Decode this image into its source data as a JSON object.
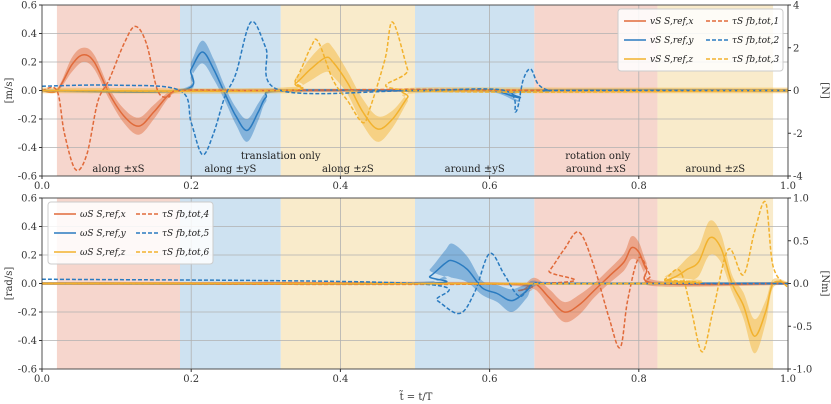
{
  "chart_data": [
    {
      "type": "line",
      "panel": "top",
      "title": "",
      "xlabel": "",
      "ylabel_left": "[m/s]",
      "ylabel_right": "[N]",
      "xlim": [
        0.0,
        1.0
      ],
      "ylim_left": [
        -0.6,
        0.6
      ],
      "ylim_right": [
        -4,
        4
      ],
      "yticks_left": [
        "-0.6",
        "-0.4",
        "-0.2",
        "0.0",
        "0.2",
        "0.4",
        "0.6"
      ],
      "yticks_right": [
        "-4",
        "-2",
        "0",
        "2",
        "4"
      ],
      "xticks": [
        "0.0",
        "0.2",
        "0.4",
        "0.6",
        "0.8",
        "1.0"
      ],
      "grid": true,
      "regions": [
        {
          "x0": 0.02,
          "x1": 0.185,
          "color": "#F4CFC4",
          "label": "along ±xS"
        },
        {
          "x0": 0.185,
          "x1": 0.32,
          "color": "#C5DDEE",
          "label": "along ±yS"
        },
        {
          "x0": 0.32,
          "x1": 0.5,
          "color": "#F8E8C2",
          "label": "along ±zS"
        },
        {
          "x0": 0.5,
          "x1": 0.66,
          "color": "#C5DDEE",
          "label": "around ±yS"
        },
        {
          "x0": 0.66,
          "x1": 0.825,
          "color": "#F4CFC4",
          "label": "around ±xS"
        },
        {
          "x0": 0.825,
          "x1": 0.98,
          "color": "#F8E8C2",
          "label": "around ±zS"
        }
      ],
      "group_labels": [
        {
          "text": "translation only",
          "x": 0.32
        },
        {
          "text": "rotation only",
          "x": 0.745
        }
      ],
      "legend_position": "top-right",
      "series": [
        {
          "name": "vS S,ref,x",
          "axis": "left",
          "style": "solid",
          "color": "#E06A3A",
          "x": [
            0.0,
            0.02,
            0.04,
            0.055,
            0.07,
            0.09,
            0.11,
            0.13,
            0.15,
            0.17,
            0.185,
            0.22,
            0.5,
            0.6,
            0.8,
            1.0
          ],
          "y": [
            0.0,
            0.0,
            0.18,
            0.25,
            0.2,
            -0.02,
            -0.18,
            -0.25,
            -0.15,
            -0.03,
            0.0,
            0.0,
            0.0,
            0.0,
            0.0,
            0.0
          ],
          "band": [
            0.0,
            0.01,
            0.05,
            0.05,
            0.05,
            0.04,
            0.05,
            0.06,
            0.05,
            0.02,
            0.01,
            0.01,
            0.01,
            0.01,
            0.01,
            0.01
          ]
        },
        {
          "name": "vS S,ref,y",
          "axis": "left",
          "style": "solid",
          "color": "#2A7BC0",
          "x": [
            0.0,
            0.185,
            0.2,
            0.215,
            0.23,
            0.245,
            0.26,
            0.275,
            0.29,
            0.3,
            0.32,
            0.5,
            0.6,
            0.64,
            0.66,
            1.0
          ],
          "y": [
            0.0,
            0.0,
            0.15,
            0.27,
            0.15,
            -0.02,
            -0.18,
            -0.28,
            -0.15,
            -0.05,
            0.0,
            0.0,
            0.0,
            -0.05,
            0.0,
            0.0
          ],
          "band": [
            0.01,
            0.01,
            0.05,
            0.08,
            0.07,
            0.05,
            0.06,
            0.08,
            0.06,
            0.03,
            0.01,
            0.01,
            0.01,
            0.03,
            0.01,
            0.01
          ]
        },
        {
          "name": "vS S,ref,z",
          "axis": "left",
          "style": "solid",
          "color": "#F2B22E",
          "x": [
            0.0,
            0.32,
            0.34,
            0.36,
            0.38,
            0.39,
            0.41,
            0.43,
            0.45,
            0.47,
            0.49,
            0.5,
            0.7,
            1.0
          ],
          "y": [
            0.0,
            0.0,
            0.05,
            0.15,
            0.23,
            0.2,
            0.05,
            -0.15,
            -0.27,
            -0.2,
            -0.05,
            0.0,
            0.0,
            0.0
          ],
          "band": [
            0.02,
            0.02,
            0.04,
            0.08,
            0.1,
            0.1,
            0.08,
            0.09,
            0.09,
            0.06,
            0.03,
            0.02,
            0.02,
            0.02
          ]
        },
        {
          "name": "τS fb,tot,1",
          "axis": "right",
          "style": "dashed",
          "color": "#E06A3A",
          "x": [
            0.0,
            0.02,
            0.03,
            0.045,
            0.06,
            0.075,
            0.09,
            0.11,
            0.125,
            0.14,
            0.155,
            0.17,
            0.185,
            0.3,
            0.5,
            0.7,
            1.0
          ],
          "y": [
            0.0,
            0.0,
            -2.0,
            -3.7,
            -3.0,
            -0.5,
            0.5,
            2.2,
            3.0,
            2.2,
            0.0,
            -0.3,
            0.0,
            0.0,
            0.05,
            0.0,
            0.0
          ]
        },
        {
          "name": "τS fb,tot,2",
          "axis": "right",
          "style": "dashed",
          "color": "#2A7BC0",
          "x": [
            0.0,
            0.1,
            0.185,
            0.2,
            0.215,
            0.23,
            0.245,
            0.26,
            0.28,
            0.3,
            0.32,
            0.5,
            0.62,
            0.635,
            0.645,
            0.655,
            0.665,
            0.68,
            0.7,
            1.0
          ],
          "y": [
            0.2,
            0.25,
            0.0,
            -1.5,
            -3.0,
            -2.0,
            -0.3,
            0.8,
            3.2,
            2.0,
            0.0,
            0.0,
            0.0,
            -1.0,
            0.5,
            1.0,
            0.3,
            0.0,
            0.0,
            0.0
          ]
        },
        {
          "name": "τS fb,tot,3",
          "axis": "right",
          "style": "dashed",
          "color": "#F2B22E",
          "x": [
            0.0,
            0.32,
            0.34,
            0.36,
            0.37,
            0.39,
            0.41,
            0.43,
            0.44,
            0.46,
            0.47,
            0.49,
            0.5,
            1.0
          ],
          "y": [
            0.0,
            0.0,
            0.5,
            2.0,
            2.3,
            0.5,
            -0.5,
            -1.5,
            -0.8,
            1.5,
            3.2,
            1.0,
            0.0,
            0.0
          ]
        }
      ]
    },
    {
      "type": "line",
      "panel": "bottom",
      "title": "",
      "xlabel": "t̃ = t/T",
      "ylabel_left": "[rad/s]",
      "ylabel_right": "[Nm]",
      "xlim": [
        0.0,
        1.0
      ],
      "ylim_left": [
        -0.6,
        0.6
      ],
      "ylim_right": [
        -1.0,
        1.0
      ],
      "yticks_left": [
        "-0.6",
        "-0.4",
        "-0.2",
        "0.0",
        "0.2",
        "0.4",
        "0.6"
      ],
      "yticks_right": [
        "-1.0",
        "-0.5",
        "0.0",
        "0.5",
        "1.0"
      ],
      "xticks": [
        "0.0",
        "0.2",
        "0.4",
        "0.6",
        "0.8",
        "1.0"
      ],
      "grid": true,
      "legend_position": "top-left",
      "series": [
        {
          "name": "ωS S,ref,x",
          "axis": "left",
          "style": "solid",
          "color": "#E06A3A",
          "x": [
            0.0,
            0.6,
            0.64,
            0.66,
            0.68,
            0.7,
            0.72,
            0.74,
            0.76,
            0.78,
            0.79,
            0.8,
            0.81,
            0.825,
            1.0
          ],
          "y": [
            0.0,
            0.0,
            -0.05,
            0.0,
            -0.1,
            -0.2,
            -0.15,
            -0.05,
            0.05,
            0.15,
            0.25,
            0.22,
            0.1,
            0.0,
            0.0
          ],
          "band": [
            0.01,
            0.01,
            0.03,
            0.04,
            0.06,
            0.07,
            0.07,
            0.05,
            0.05,
            0.06,
            0.08,
            0.07,
            0.05,
            0.02,
            0.01
          ]
        },
        {
          "name": "ωS S,ref,y",
          "axis": "left",
          "style": "solid",
          "color": "#2A7BC0",
          "x": [
            0.0,
            0.5,
            0.52,
            0.54,
            0.55,
            0.57,
            0.59,
            0.61,
            0.63,
            0.65,
            0.66,
            0.7,
            1.0
          ],
          "y": [
            0.0,
            0.0,
            0.05,
            0.14,
            0.16,
            0.1,
            -0.03,
            -0.07,
            -0.12,
            -0.05,
            0.0,
            0.0,
            0.0
          ],
          "band": [
            0.01,
            0.01,
            0.05,
            0.09,
            0.12,
            0.09,
            0.05,
            0.06,
            0.08,
            0.05,
            0.02,
            0.01,
            0.01
          ]
        },
        {
          "name": "ωS S,ref,z",
          "axis": "left",
          "style": "solid",
          "color": "#F2B22E",
          "x": [
            0.0,
            0.82,
            0.835,
            0.85,
            0.865,
            0.88,
            0.895,
            0.91,
            0.925,
            0.94,
            0.955,
            0.97,
            0.98,
            1.0
          ],
          "y": [
            0.0,
            0.0,
            0.02,
            0.05,
            0.1,
            0.15,
            0.32,
            0.25,
            0.0,
            -0.15,
            -0.37,
            -0.2,
            0.0,
            0.0
          ],
          "band": [
            0.01,
            0.01,
            0.03,
            0.05,
            0.08,
            0.1,
            0.12,
            0.1,
            0.06,
            0.09,
            0.12,
            0.08,
            0.03,
            0.01
          ]
        },
        {
          "name": "τS fb,tot,4",
          "axis": "right",
          "style": "dashed",
          "color": "#E06A3A",
          "x": [
            0.0,
            0.66,
            0.68,
            0.7,
            0.72,
            0.74,
            0.76,
            0.775,
            0.785,
            0.8,
            0.815,
            0.825,
            1.0
          ],
          "y": [
            0.0,
            0.0,
            0.15,
            0.4,
            0.6,
            0.2,
            -0.4,
            -0.75,
            -0.2,
            0.3,
            0.1,
            0.0,
            0.0
          ]
        },
        {
          "name": "τS fb,tot,5",
          "axis": "right",
          "style": "dashed",
          "color": "#2A7BC0",
          "x": [
            0.0,
            0.5,
            0.53,
            0.56,
            0.58,
            0.6,
            0.62,
            0.64,
            0.66,
            0.7,
            1.0
          ],
          "y": [
            0.05,
            0.0,
            -0.2,
            -0.35,
            -0.1,
            0.35,
            0.1,
            -0.15,
            0.0,
            0.0,
            0.0
          ]
        },
        {
          "name": "τS fb,tot,6",
          "axis": "right",
          "style": "dashed",
          "color": "#F2B22E",
          "x": [
            0.0,
            0.82,
            0.835,
            0.855,
            0.87,
            0.885,
            0.9,
            0.92,
            0.94,
            0.955,
            0.97,
            0.98,
            1.0
          ],
          "y": [
            0.0,
            0.0,
            0.05,
            0.15,
            -0.3,
            -0.8,
            -0.3,
            0.4,
            0.1,
            0.6,
            0.95,
            0.2,
            -0.05
          ]
        }
      ]
    }
  ]
}
